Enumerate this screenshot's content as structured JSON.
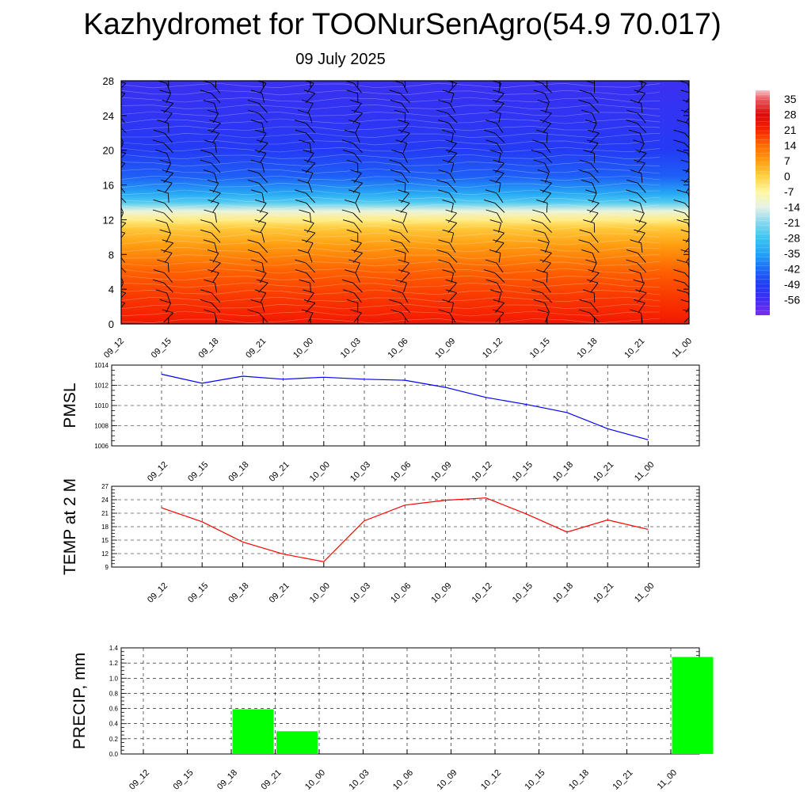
{
  "title": "Kazhydromet for TOONurSenAgro(54.9 70.017)",
  "subtitle": "09 July 2025",
  "time_labels": [
    "09_12",
    "09_15",
    "09_18",
    "09_21",
    "10_00",
    "10_03",
    "10_06",
    "10_09",
    "10_12",
    "10_15",
    "10_18",
    "10_21",
    "11_00"
  ],
  "chart_data": [
    {
      "type": "heatmap",
      "name": "upper-air-temperature-cross-section",
      "x": [
        "09_12",
        "09_15",
        "09_18",
        "09_21",
        "10_00",
        "10_03",
        "10_06",
        "10_09",
        "10_12",
        "10_15",
        "10_18",
        "10_21",
        "11_00"
      ],
      "ylim": [
        0,
        28
      ],
      "yticks": [
        0,
        4,
        8,
        12,
        16,
        20,
        24,
        28
      ],
      "colorbar": {
        "ticks": [
          35,
          28,
          21,
          14,
          7,
          0,
          -7,
          -14,
          -21,
          -28,
          -35,
          -42,
          -49,
          -56
        ],
        "range": [
          -63,
          39
        ],
        "stops": [
          {
            "v": -63,
            "c": "#7a2cf0"
          },
          {
            "v": -56,
            "c": "#3f2ef2"
          },
          {
            "v": -49,
            "c": "#1f3df5"
          },
          {
            "v": -42,
            "c": "#1e6cf8"
          },
          {
            "v": -35,
            "c": "#22a4f5"
          },
          {
            "v": -28,
            "c": "#3cc4f2"
          },
          {
            "v": -21,
            "c": "#86d8f0"
          },
          {
            "v": -14,
            "c": "#e6f2e6"
          },
          {
            "v": -7,
            "c": "#fff8a0"
          },
          {
            "v": 0,
            "c": "#ffd040"
          },
          {
            "v": 7,
            "c": "#ff9c10"
          },
          {
            "v": 14,
            "c": "#ff6a00"
          },
          {
            "v": 21,
            "c": "#f72200"
          },
          {
            "v": 28,
            "c": "#dd0a08"
          },
          {
            "v": 35,
            "c": "#e85a60"
          },
          {
            "v": 39,
            "c": "#f6c4c8"
          }
        ]
      }
    },
    {
      "type": "line",
      "ylabel": "PMSL",
      "x": [
        "09_12",
        "09_15",
        "09_18",
        "09_21",
        "10_00",
        "10_03",
        "10_06",
        "10_09",
        "10_12",
        "10_15",
        "10_18",
        "10_21",
        "11_00"
      ],
      "values": [
        1013.1,
        1012.2,
        1012.9,
        1012.6,
        1012.8,
        1012.6,
        1012.5,
        1011.8,
        1010.8,
        1010.1,
        1009.3,
        1007.7,
        1006.6
      ],
      "ylim": [
        1006,
        1014
      ],
      "yticks": [
        1006,
        1008,
        1010,
        1012,
        1014
      ],
      "color": "#0000ff",
      "grid": true
    },
    {
      "type": "line",
      "ylabel": "TEMP at 2 M",
      "x": [
        "09_12",
        "09_15",
        "09_18",
        "09_21",
        "10_00",
        "10_03",
        "10_06",
        "10_09",
        "10_12",
        "10_15",
        "10_18",
        "10_21",
        "11_00"
      ],
      "values": [
        22.2,
        19.1,
        14.6,
        11.9,
        10.2,
        19.3,
        22.8,
        23.9,
        24.4,
        20.8,
        16.8,
        19.5,
        17.4
      ],
      "ylim": [
        9,
        27
      ],
      "yticks": [
        9,
        12,
        15,
        18,
        21,
        24,
        27
      ],
      "color": "#ff0000",
      "grid": true
    },
    {
      "type": "bar",
      "ylabel": "PRECIP, mm",
      "categories": [
        "09_12",
        "09_15",
        "09_18",
        "09_21",
        "10_00",
        "10_03",
        "10_06",
        "10_09",
        "10_12",
        "10_15",
        "10_18",
        "10_21",
        "11_00"
      ],
      "values": [
        0,
        0,
        0.59,
        0.3,
        0,
        0,
        0,
        0,
        0,
        0,
        0,
        0,
        1.28
      ],
      "ylim": [
        0,
        1.4
      ],
      "yticks": [
        0.0,
        0.2,
        0.4,
        0.6,
        0.8,
        1.0,
        1.2,
        1.4
      ],
      "ytick_labels": [
        "0.0",
        "0.2",
        "0.4",
        "0.6",
        "0.8",
        "1.0",
        "1.2",
        "1.4"
      ],
      "color": "#00ff00",
      "grid": true
    }
  ]
}
